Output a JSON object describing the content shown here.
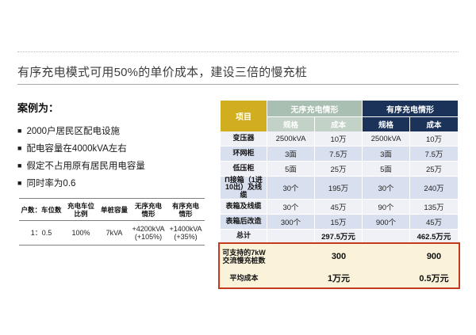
{
  "slide": {
    "title": "有序充电模式可用50%的单价成本，建设三倍的慢充桩"
  },
  "case_panel": {
    "heading": "案例为：",
    "bullet_marker": "■",
    "bullets": [
      "2000户居民区配电设施",
      "配电容量在4000kVA左右",
      "假定不占用原有居民用电容量",
      "同时率为0.6"
    ]
  },
  "ratio_table": {
    "headers": [
      "户数：车位数",
      "充电车位\n比例",
      "单桩容量",
      "无序充电\n情形",
      "有序充电\n情形"
    ],
    "row": [
      "1：0.5",
      "100%",
      "7kVA",
      "+4200kVA\n(+105%)",
      "+1400kVA\n(+35%)"
    ]
  },
  "cost_table": {
    "col_item": "项目",
    "group_unordered": "无序充电情形",
    "group_ordered": "有序充电情形",
    "sub_spec": "规格",
    "sub_cost": "成本",
    "rows": [
      {
        "item": "变压器",
        "u_spec": "2500kVA",
        "u_cost": "10万",
        "o_spec": "2500kVA",
        "o_cost": "10万"
      },
      {
        "item": "环网柜",
        "u_spec": "3面",
        "u_cost": "7.5万",
        "o_spec": "3面",
        "o_cost": "7.5万"
      },
      {
        "item": "低压柜",
        "u_spec": "5面",
        "u_cost": "25万",
        "o_spec": "5面",
        "o_cost": "25万"
      },
      {
        "item": "Π接箱（1进10出）及线缆",
        "u_spec": "30个",
        "u_cost": "195万",
        "o_spec": "30个",
        "o_cost": "240万"
      },
      {
        "item": "表箱及线缆",
        "u_spec": "30个",
        "u_cost": "45万",
        "o_spec": "90个",
        "o_cost": "135万"
      },
      {
        "item": "表箱后改造",
        "u_spec": "300个",
        "u_cost": "15万",
        "o_spec": "900个",
        "o_cost": "45万"
      }
    ],
    "total": {
      "item": "总计",
      "u_cost": "297.5万元",
      "o_cost": "462.5万元"
    }
  },
  "highlight": {
    "rows": [
      {
        "item": "可支持的7kW\n交流慢充桩数",
        "u_value": "300",
        "o_value": "900"
      },
      {
        "item": "平均成本",
        "u_value": "1万元",
        "o_value": "0.5万元"
      }
    ]
  },
  "colors": {
    "accent_gold": "#d0ae1f",
    "unordered_header": "#a9bfb1",
    "unordered_subheader": "#c3d2c6",
    "ordered_header": "#1b3358",
    "row_odd": "#eff1f7",
    "row_even": "#d8dfee",
    "highlight_bg": "#faf3da",
    "highlight_border": "#c23b1d"
  }
}
